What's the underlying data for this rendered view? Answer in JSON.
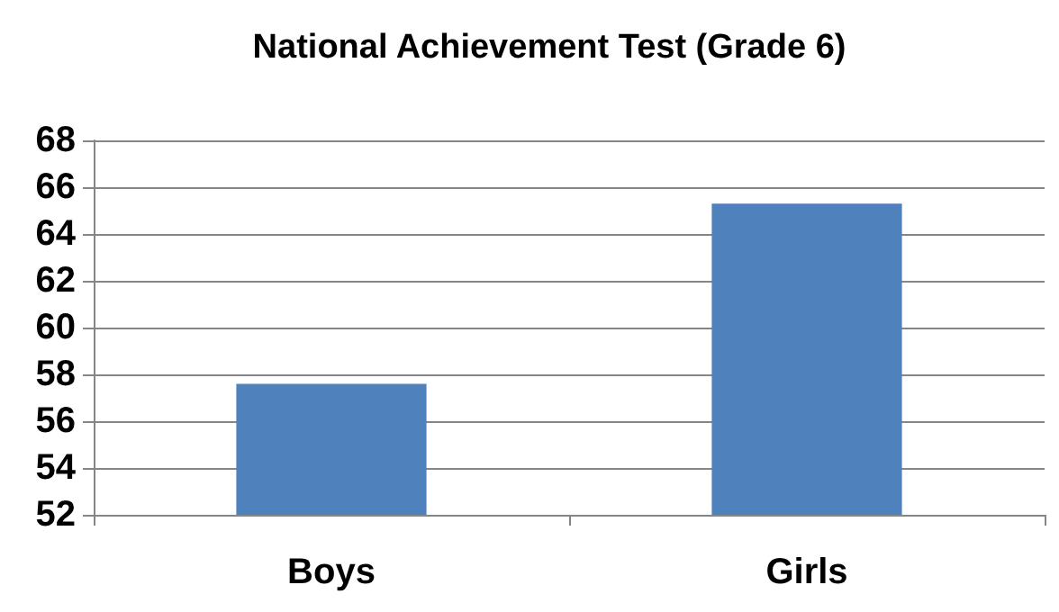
{
  "chart_data": {
    "type": "bar",
    "title": "National Achievement Test (Grade 6)",
    "categories": [
      "Boys",
      "Girls"
    ],
    "series": [
      {
        "color": "#4f81bd",
        "values": [
          57.6,
          65.3
        ]
      }
    ],
    "ylim": [
      52,
      68
    ],
    "yticks": [
      52,
      54,
      56,
      58,
      60,
      62,
      64,
      66,
      68
    ],
    "grid": "y"
  }
}
